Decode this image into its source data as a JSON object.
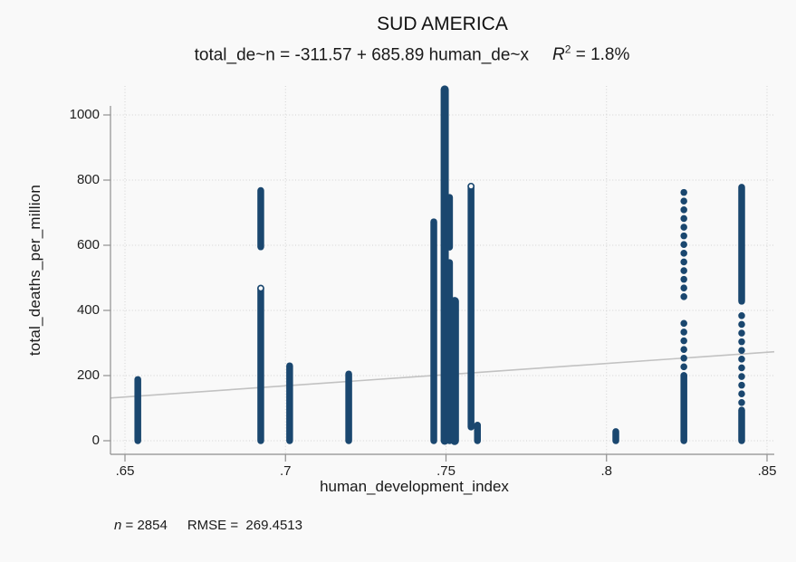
{
  "title": "SUD AMERICA",
  "subtitle": {
    "equation": "total_de~n = -311.57 + 685.89 human_de~x",
    "r2_symbol": "R",
    "r2_exponent": "2",
    "r2_rest": " = 1.8%"
  },
  "footnote": {
    "n_symbol": "n",
    "n_value": " = 2854",
    "rmse_text": "RMSE =  269.4513"
  },
  "colors": {
    "marker": "#1a476f",
    "fit_line": "#c2c2c2",
    "grid": "#d2d2d2",
    "axis": "#8f8f8f",
    "text": "#141414",
    "background": "#f9f9f9"
  },
  "chart_data": {
    "type": "scatter",
    "title": "SUD AMERICA",
    "xlabel": "human_development_index",
    "ylabel": "total_deaths_per_million",
    "x_ticks": [
      0.65,
      0.7,
      0.75,
      0.8,
      0.85
    ],
    "x_tick_labels": [
      ".65",
      ".7",
      ".75",
      ".8",
      ".85"
    ],
    "y_ticks": [
      0,
      200,
      400,
      600,
      800,
      1000
    ],
    "y_tick_labels": [
      "0",
      "200",
      "400",
      "600",
      "800",
      "1000"
    ],
    "xlim": [
      0.6455,
      0.8523
    ],
    "ylim": [
      0,
      1080
    ],
    "grid": true,
    "legend": "none",
    "fit": {
      "equation": "total_de~n = -311.57 + 685.89 human_de~x",
      "intercept": -311.57,
      "slope": 685.89,
      "r2_pct": "1.8%",
      "n": 2854,
      "rmse": 269.4513
    },
    "strips": [
      {
        "x": 0.654,
        "segments": [
          {
            "lo": 0,
            "hi": 188
          }
        ]
      },
      {
        "x": 0.6923,
        "segments": [
          {
            "lo": 0,
            "hi": 468,
            "cap": true
          },
          {
            "lo": 595,
            "hi": 768
          }
        ]
      },
      {
        "x": 0.7013,
        "segments": [
          {
            "lo": 0,
            "hi": 230
          }
        ]
      },
      {
        "x": 0.7197,
        "segments": [
          {
            "lo": 0,
            "hi": 205
          }
        ]
      },
      {
        "x": 0.7462,
        "segments": [
          {
            "lo": 0,
            "hi": 672
          }
        ]
      },
      {
        "x": 0.7496,
        "segments": [
          {
            "lo": 0,
            "hi": 1078,
            "w": 9
          }
        ]
      },
      {
        "x": 0.7511,
        "segments": [
          {
            "lo": 0,
            "hi": 547
          },
          {
            "lo": 594,
            "hi": 747
          }
        ]
      },
      {
        "x": 0.7527,
        "segments": [
          {
            "lo": 0,
            "hi": 428,
            "w": 9.5
          }
        ]
      },
      {
        "x": 0.7578,
        "segments": [
          {
            "lo": 42,
            "hi": 781,
            "cap": true
          }
        ]
      },
      {
        "x": 0.7598,
        "segments": [
          {
            "lo": 0,
            "hi": 48
          }
        ]
      },
      {
        "x": 0.8029,
        "segments": [
          {
            "lo": 0,
            "hi": 28
          }
        ]
      },
      {
        "x": 0.8241,
        "segments": [
          {
            "lo": 0,
            "hi": 200
          },
          {
            "lo": 200,
            "hi": 380,
            "style": "sparse"
          },
          {
            "lo": 442,
            "hi": 781,
            "style": "sparse"
          }
        ]
      },
      {
        "x": 0.8421,
        "segments": [
          {
            "lo": 0,
            "hi": 94
          },
          {
            "lo": 117,
            "hi": 386,
            "style": "sparse"
          },
          {
            "lo": 428,
            "hi": 778
          }
        ]
      }
    ]
  }
}
